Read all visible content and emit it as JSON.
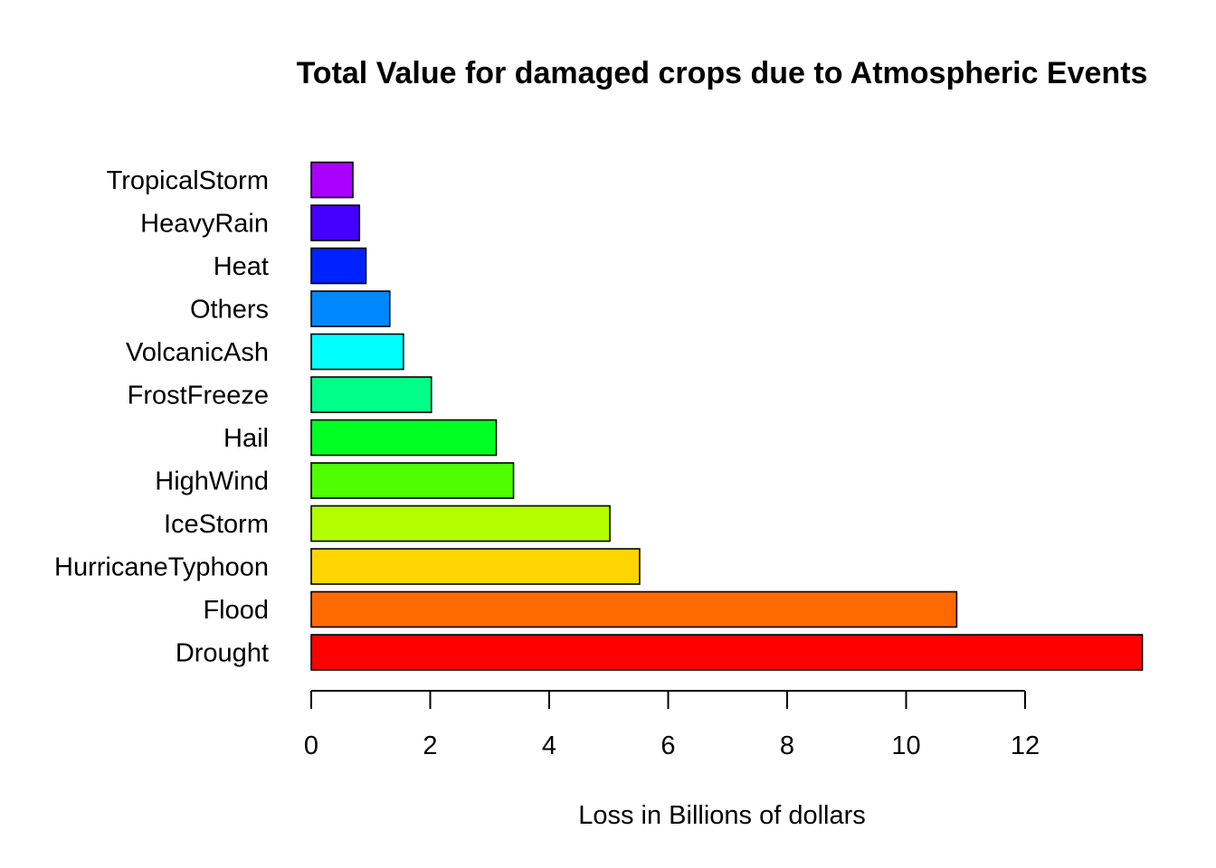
{
  "chart_data": {
    "type": "bar",
    "orientation": "horizontal",
    "title": "Total Value for damaged crops due to Atmospheric Events",
    "xlabel": "Loss in Billions of dollars",
    "ylabel": "",
    "xlim": [
      0,
      14
    ],
    "x_ticks": [
      0,
      2,
      4,
      6,
      8,
      10,
      12
    ],
    "x_tick_labels": [
      "0",
      "2",
      "4",
      "6",
      "8",
      "10",
      "12"
    ],
    "grid": false,
    "legend": "none",
    "categories": [
      "Drought",
      "Flood",
      "HurricaneTyphoon",
      "IceStorm",
      "HighWind",
      "Hail",
      "FrostFreeze",
      "VolcanicAsh",
      "Others",
      "Heat",
      "HeavyRain",
      "TropicalStorm"
    ],
    "values": [
      13.97,
      10.85,
      5.52,
      5.02,
      3.4,
      3.11,
      2.02,
      1.55,
      1.32,
      0.92,
      0.81,
      0.7
    ],
    "colors": [
      "#FF0000",
      "#FF6A00",
      "#FFD500",
      "#B3FF00",
      "#4DFF00",
      "#00FF22",
      "#00FF88",
      "#00FFFF",
      "#0088FF",
      "#0022FF",
      "#4400FF",
      "#AA00FF"
    ]
  }
}
